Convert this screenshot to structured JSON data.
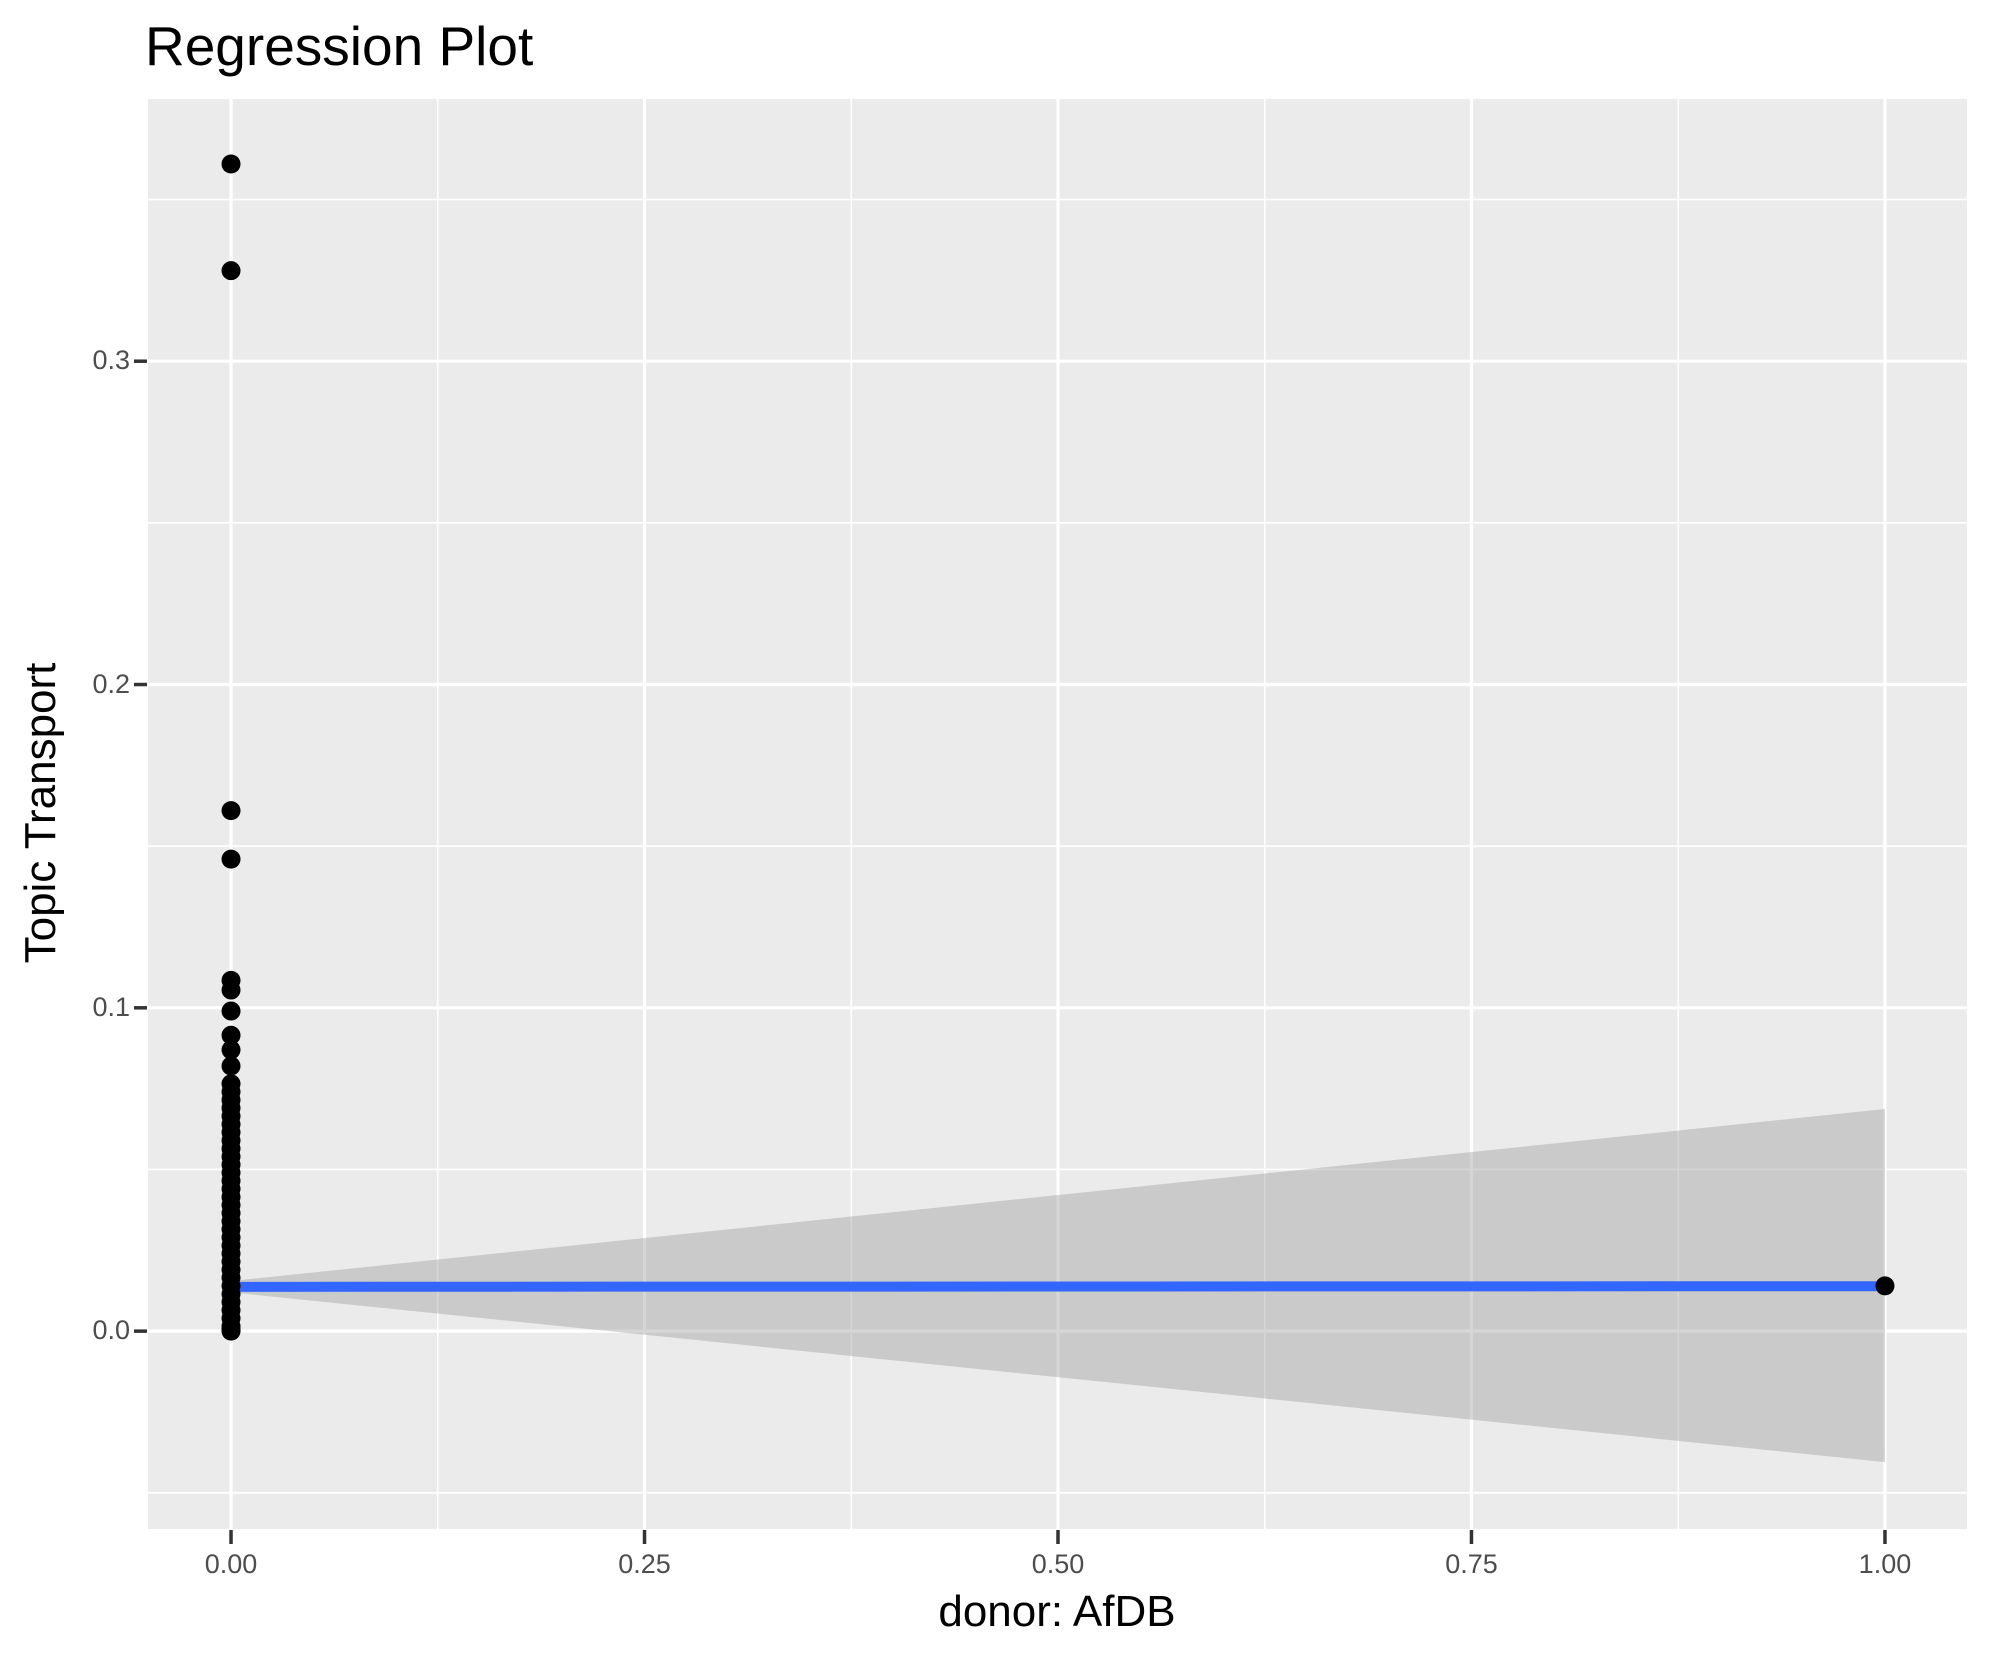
{
  "chart_data": {
    "type": "scatter",
    "title": "Regression Plot",
    "xlabel": "donor: AfDB",
    "ylabel": "Topic Transport",
    "legend": "none",
    "grid": "on",
    "xlim": [
      -0.0502,
      1.0496
    ],
    "ylim": [
      -0.0612,
      0.3811
    ],
    "x_ticks": {
      "values": [
        0.0,
        0.25,
        0.5,
        0.75,
        1.0
      ],
      "labels": [
        "0.00",
        "0.25",
        "0.50",
        "0.75",
        "1.00"
      ]
    },
    "y_ticks": {
      "values": [
        0.0,
        0.1,
        0.2,
        0.3
      ],
      "labels": [
        "0.0",
        "0.1",
        "0.2",
        "0.3"
      ]
    },
    "x_minor": [
      0.125,
      0.375,
      0.625,
      0.875
    ],
    "y_minor": [
      -0.05,
      0.05,
      0.15,
      0.25,
      0.35
    ],
    "series": [
      {
        "name": "confidence-interval",
        "geom": "ribbon",
        "color": "#999999",
        "alpha": 0.4,
        "x": [
          0,
          1
        ],
        "upper": [
          0.0155,
          0.0687
        ],
        "lower": [
          0.012,
          -0.0405
        ]
      },
      {
        "name": "regression-line",
        "geom": "line",
        "color": "#3366FF",
        "x": [
          0,
          1
        ],
        "y": [
          0.0137,
          0.0139
        ]
      },
      {
        "name": "observations",
        "geom": "point",
        "color": "#000000",
        "points": [
          [
            0,
            0.361
          ],
          [
            0,
            0.328
          ],
          [
            0,
            0.161
          ],
          [
            0,
            0.146
          ],
          [
            0,
            0.1085
          ],
          [
            0,
            0.1055
          ],
          [
            0,
            0.099
          ],
          [
            0,
            0.0915
          ],
          [
            0,
            0.087
          ],
          [
            0,
            0.082
          ],
          [
            0,
            0.0765
          ],
          [
            0,
            0.074
          ],
          [
            0,
            0.0715
          ],
          [
            0,
            0.069
          ],
          [
            0,
            0.0665
          ],
          [
            0,
            0.064
          ],
          [
            0,
            0.0615
          ],
          [
            0,
            0.059
          ],
          [
            0,
            0.0565
          ],
          [
            0,
            0.054
          ],
          [
            0,
            0.0515
          ],
          [
            0,
            0.049
          ],
          [
            0,
            0.0465
          ],
          [
            0,
            0.044
          ],
          [
            0,
            0.0415
          ],
          [
            0,
            0.039
          ],
          [
            0,
            0.0365
          ],
          [
            0,
            0.034
          ],
          [
            0,
            0.0315
          ],
          [
            0,
            0.029
          ],
          [
            0,
            0.0265
          ],
          [
            0,
            0.024
          ],
          [
            0,
            0.0215
          ],
          [
            0,
            0.019
          ],
          [
            0,
            0.0165
          ],
          [
            0,
            0.014
          ],
          [
            0,
            0.0115
          ],
          [
            0,
            0.009
          ],
          [
            0,
            0.0065
          ],
          [
            0,
            0.004
          ],
          [
            0,
            0.0015
          ],
          [
            0,
            0.0005
          ],
          [
            0,
            0.0
          ],
          [
            1,
            0.014
          ]
        ]
      }
    ],
    "style": {
      "panel_color": "#EBEBEB",
      "grid_color": "#FFFFFF",
      "tick_text_color": "#4D4D4D",
      "tick_mark_color": "#333333",
      "title_color": "#000000",
      "line_color": "#3366FF",
      "point_color": "#000000"
    }
  }
}
